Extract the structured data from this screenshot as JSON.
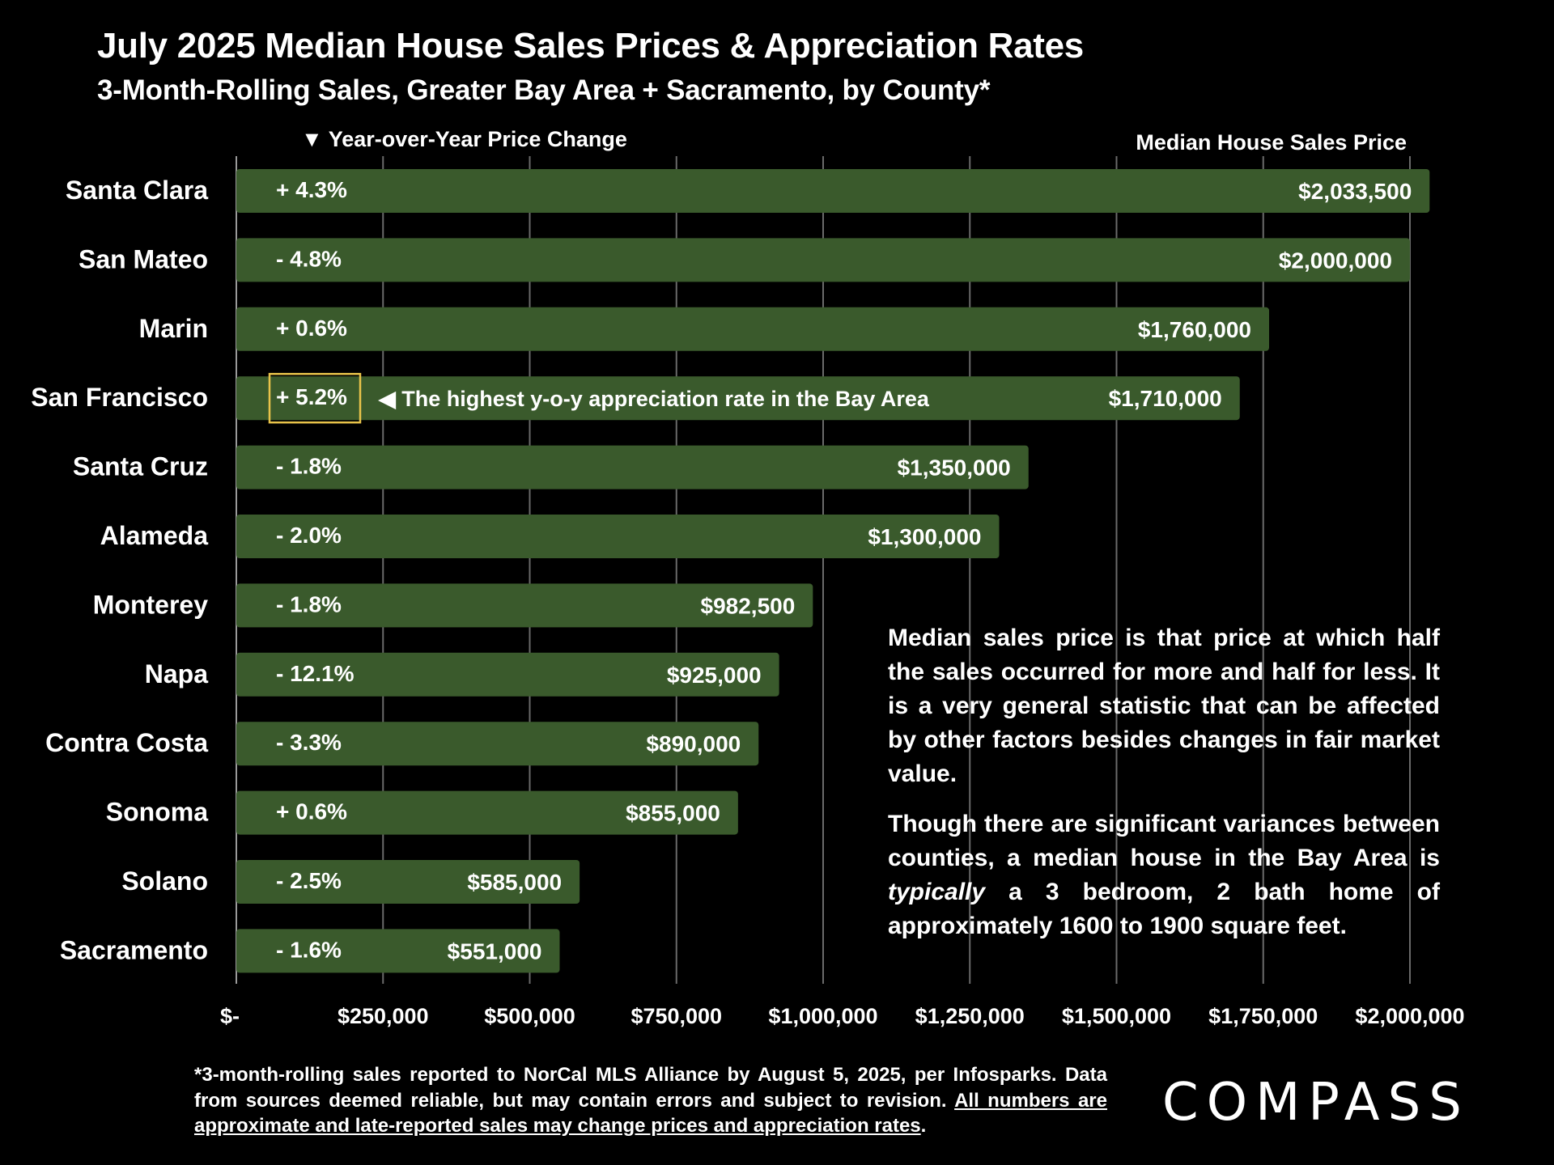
{
  "header": {
    "title": "July 2025 Median House Sales Prices & Appreciation Rates",
    "subtitle": "3-Month-Rolling Sales, Greater Bay Area + Sacramento, by County*"
  },
  "chart_data": {
    "type": "bar",
    "orientation": "horizontal",
    "title": "July 2025 Median House Sales Prices & Appreciation Rates",
    "subtitle": "3-Month-Rolling Sales, Greater Bay Area + Sacramento, by County*",
    "value_header": "Median House Sales Price",
    "change_header": "▼ Year-over-Year Price Change",
    "categories": [
      "Santa Clara",
      "San Mateo",
      "Marin",
      "San Francisco",
      "Santa Cruz",
      "Alameda",
      "Monterey",
      "Napa",
      "Contra Costa",
      "Sonoma",
      "Solano",
      "Sacramento"
    ],
    "values": [
      2033500,
      2000000,
      1760000,
      1710000,
      1350000,
      1300000,
      982500,
      925000,
      890000,
      855000,
      585000,
      551000
    ],
    "value_labels": [
      "$2,033,500",
      "$2,000,000",
      "$1,760,000",
      "$1,710,000",
      "$1,350,000",
      "$1,300,000",
      "$982,500",
      "$925,000",
      "$890,000",
      "$855,000",
      "$585,000",
      "$551,000"
    ],
    "yoy_labels": [
      "+ 4.3%",
      "- 4.8%",
      "+ 0.6%",
      "+ 5.2%",
      "- 1.8%",
      "- 2.0%",
      "- 1.8%",
      "- 12.1%",
      "- 3.3%",
      "+ 0.6%",
      "- 2.5%",
      "- 1.6%"
    ],
    "highlight_index": 3,
    "highlight_annotation": "◀ The highest y-o-y appreciation rate in the Bay Area",
    "xlim": [
      0,
      2000000
    ],
    "xticks": [
      0,
      250000,
      500000,
      750000,
      1000000,
      1250000,
      1500000,
      1750000,
      2000000
    ],
    "xtick_labels": [
      "$-",
      "$250,000",
      "$500,000",
      "$750,000",
      "$1,000,000",
      "$1,250,000",
      "$1,500,000",
      "$1,750,000",
      "$2,000,000"
    ],
    "grid": true,
    "colors": {
      "bar": "#3a5a2c",
      "highlight_box": "#e8c34a",
      "background": "#000000",
      "grid": "#6a6a6a",
      "text": "#ffffff"
    }
  },
  "note": {
    "p1": "Median sales price is that price at which half the sales occurred for more and half for less. It is a very general statistic that can be affected by other factors besides changes in fair market value.",
    "p2_pre": "Though there are significant variances between counties, a median house in the Bay Area is ",
    "p2_em": "typically",
    "p2_post": " a 3 bedroom, 2 bath home of approximately 1600 to 1900 square feet."
  },
  "footnote": {
    "text": "*3-month-rolling sales reported to NorCal MLS Alliance by August 5, 2025, per Infosparks. Data from sources deemed reliable, but may contain errors and subject to revision. ",
    "underlined": "All numbers are approximate and late-reported sales may change prices and appreciation rates",
    "end": "."
  },
  "logo": "COMPASS"
}
